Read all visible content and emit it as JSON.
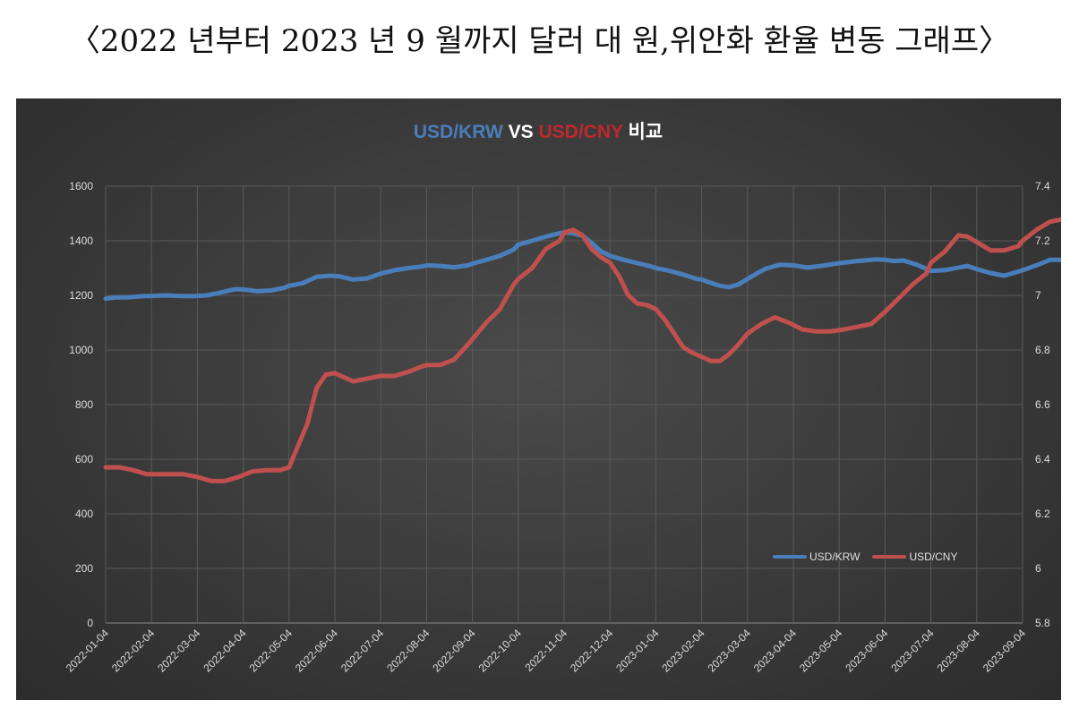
{
  "page_title": "〈2022 년부터 2023 년 9 월까지 달러 대 원,위안화 환율 변동 그래프〉",
  "chart_data": {
    "type": "line",
    "title_parts": [
      {
        "text": "USD/KRW",
        "color": "#4a7ebb"
      },
      {
        "text": " VS ",
        "color": "#ffffff"
      },
      {
        "text": "USD/CNY",
        "color": "#c0282d"
      },
      {
        "text": " 비교",
        "color": "#ffffff"
      }
    ],
    "categories": [
      "2022-01-04",
      "2022-02-04",
      "2022-03-04",
      "2022-04-04",
      "2022-05-04",
      "2022-06-04",
      "2022-07-04",
      "2022-08-04",
      "2022-09-04",
      "2022-10-04",
      "2022-11-04",
      "2022-12-04",
      "2023-01-04",
      "2023-02-04",
      "2023-03-04",
      "2023-04-04",
      "2023-05-04",
      "2023-06-04",
      "2023-07-04",
      "2023-08-04",
      "2023-09-04"
    ],
    "y_left": {
      "min": 0,
      "max": 1600,
      "ticks": [
        "0",
        "200",
        "400",
        "600",
        "800",
        "1000",
        "1200",
        "1400",
        "1600"
      ]
    },
    "y_right": {
      "min": 5.8,
      "max": 7.4,
      "ticks": [
        "5.8",
        "6",
        "6.2",
        "6.4",
        "6.6",
        "6.8",
        "7",
        "7.2",
        "7.4"
      ]
    },
    "grid": true,
    "legend_position": "bottom-right",
    "series": [
      {
        "name": "USD/KRW",
        "axis": "left",
        "color": "#4a7ebb",
        "points": [
          [
            0,
            1188
          ],
          [
            0.2,
            1192
          ],
          [
            0.5,
            1193
          ],
          [
            0.8,
            1197
          ],
          [
            1.0,
            1198
          ],
          [
            1.3,
            1200
          ],
          [
            1.6,
            1198
          ],
          [
            1.9,
            1197
          ],
          [
            2.2,
            1200
          ],
          [
            2.5,
            1210
          ],
          [
            2.8,
            1222
          ],
          [
            3.0,
            1222
          ],
          [
            3.3,
            1215
          ],
          [
            3.6,
            1218
          ],
          [
            3.9,
            1228
          ],
          [
            4.0,
            1235
          ],
          [
            4.3,
            1245
          ],
          [
            4.6,
            1268
          ],
          [
            4.9,
            1272
          ],
          [
            5.1,
            1270
          ],
          [
            5.4,
            1258
          ],
          [
            5.7,
            1262
          ],
          [
            6.0,
            1280
          ],
          [
            6.3,
            1292
          ],
          [
            6.6,
            1300
          ],
          [
            6.9,
            1306
          ],
          [
            7.0,
            1310
          ],
          [
            7.3,
            1308
          ],
          [
            7.6,
            1303
          ],
          [
            7.9,
            1310
          ],
          [
            8.0,
            1316
          ],
          [
            8.3,
            1330
          ],
          [
            8.6,
            1345
          ],
          [
            8.9,
            1368
          ],
          [
            9.0,
            1386
          ],
          [
            9.3,
            1400
          ],
          [
            9.6,
            1415
          ],
          [
            9.9,
            1428
          ],
          [
            10.0,
            1430
          ],
          [
            10.2,
            1428
          ],
          [
            10.4,
            1418
          ],
          [
            10.6,
            1392
          ],
          [
            10.8,
            1362
          ],
          [
            11.0,
            1345
          ],
          [
            11.3,
            1330
          ],
          [
            11.6,
            1318
          ],
          [
            11.9,
            1306
          ],
          [
            12.0,
            1300
          ],
          [
            12.3,
            1290
          ],
          [
            12.6,
            1276
          ],
          [
            12.9,
            1260
          ],
          [
            13.0,
            1258
          ],
          [
            13.2,
            1246
          ],
          [
            13.4,
            1235
          ],
          [
            13.6,
            1230
          ],
          [
            13.8,
            1240
          ],
          [
            14.0,
            1260
          ],
          [
            14.2,
            1280
          ],
          [
            14.4,
            1298
          ],
          [
            14.7,
            1312
          ],
          [
            15.0,
            1310
          ],
          [
            15.3,
            1302
          ],
          [
            15.6,
            1308
          ],
          [
            16.0,
            1318
          ],
          [
            16.4,
            1326
          ],
          [
            16.8,
            1332
          ],
          [
            17.0,
            1330
          ],
          [
            17.2,
            1326
          ],
          [
            17.4,
            1328
          ],
          [
            17.7,
            1312
          ],
          [
            18.0,
            1290
          ],
          [
            18.3,
            1292
          ],
          [
            18.6,
            1302
          ],
          [
            18.8,
            1308
          ],
          [
            19.0,
            1296
          ],
          [
            19.3,
            1282
          ],
          [
            19.6,
            1272
          ],
          [
            19.8,
            1282
          ],
          [
            20.0,
            1292
          ],
          [
            20.3,
            1310
          ],
          [
            20.6,
            1330
          ],
          [
            20.9,
            1330
          ]
        ]
      },
      {
        "name": "USD/CNY",
        "axis": "right",
        "color": "#c0504d",
        "points": [
          [
            0,
            6.37
          ],
          [
            0.3,
            6.37
          ],
          [
            0.6,
            6.36
          ],
          [
            0.9,
            6.345
          ],
          [
            1.3,
            6.345
          ],
          [
            1.7,
            6.345
          ],
          [
            2.0,
            6.335
          ],
          [
            2.3,
            6.32
          ],
          [
            2.6,
            6.32
          ],
          [
            2.9,
            6.335
          ],
          [
            3.2,
            6.355
          ],
          [
            3.5,
            6.36
          ],
          [
            3.8,
            6.36
          ],
          [
            4.0,
            6.37
          ],
          [
            4.2,
            6.45
          ],
          [
            4.4,
            6.53
          ],
          [
            4.6,
            6.66
          ],
          [
            4.8,
            6.71
          ],
          [
            5.0,
            6.715
          ],
          [
            5.2,
            6.7
          ],
          [
            5.4,
            6.685
          ],
          [
            5.7,
            6.695
          ],
          [
            6.0,
            6.705
          ],
          [
            6.3,
            6.705
          ],
          [
            6.6,
            6.72
          ],
          [
            6.9,
            6.74
          ],
          [
            7.0,
            6.745
          ],
          [
            7.3,
            6.745
          ],
          [
            7.6,
            6.765
          ],
          [
            7.9,
            6.82
          ],
          [
            8.0,
            6.84
          ],
          [
            8.3,
            6.9
          ],
          [
            8.6,
            6.95
          ],
          [
            8.9,
            7.04
          ],
          [
            9.0,
            7.06
          ],
          [
            9.3,
            7.1
          ],
          [
            9.6,
            7.17
          ],
          [
            9.9,
            7.2
          ],
          [
            10.0,
            7.23
          ],
          [
            10.2,
            7.24
          ],
          [
            10.4,
            7.22
          ],
          [
            10.6,
            7.17
          ],
          [
            10.8,
            7.14
          ],
          [
            11.0,
            7.12
          ],
          [
            11.2,
            7.07
          ],
          [
            11.4,
            7.0
          ],
          [
            11.6,
            6.97
          ],
          [
            11.8,
            6.965
          ],
          [
            12.0,
            6.95
          ],
          [
            12.2,
            6.91
          ],
          [
            12.4,
            6.86
          ],
          [
            12.6,
            6.81
          ],
          [
            12.8,
            6.79
          ],
          [
            13.0,
            6.775
          ],
          [
            13.2,
            6.76
          ],
          [
            13.4,
            6.76
          ],
          [
            13.6,
            6.785
          ],
          [
            13.8,
            6.82
          ],
          [
            14.0,
            6.86
          ],
          [
            14.3,
            6.895
          ],
          [
            14.6,
            6.92
          ],
          [
            14.9,
            6.9
          ],
          [
            15.2,
            6.875
          ],
          [
            15.5,
            6.868
          ],
          [
            15.8,
            6.868
          ],
          [
            16.1,
            6.875
          ],
          [
            16.4,
            6.885
          ],
          [
            16.7,
            6.895
          ],
          [
            17.0,
            6.94
          ],
          [
            17.3,
            6.99
          ],
          [
            17.6,
            7.04
          ],
          [
            17.9,
            7.08
          ],
          [
            18.0,
            7.12
          ],
          [
            18.3,
            7.16
          ],
          [
            18.6,
            7.22
          ],
          [
            18.8,
            7.215
          ],
          [
            19.0,
            7.195
          ],
          [
            19.3,
            7.165
          ],
          [
            19.6,
            7.165
          ],
          [
            19.9,
            7.18
          ],
          [
            20.0,
            7.2
          ],
          [
            20.3,
            7.24
          ],
          [
            20.6,
            7.27
          ],
          [
            20.9,
            7.28
          ]
        ]
      }
    ]
  }
}
